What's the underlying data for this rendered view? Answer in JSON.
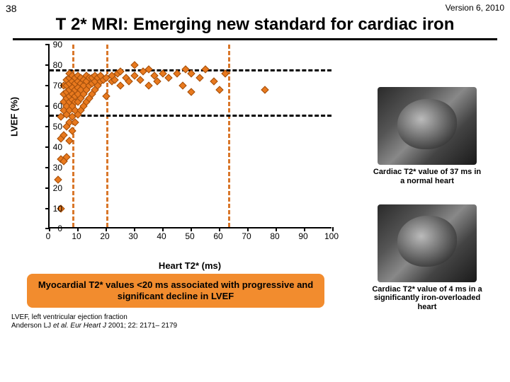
{
  "header": {
    "page_number": "38",
    "version": "Version 6, 2010"
  },
  "title": "T 2* MRI: Emerging new standard for cardiac iron",
  "chart": {
    "type": "scatter",
    "xlabel": "Heart T2* (ms)",
    "ylabel": "LVEF (%)",
    "xlim": [
      0,
      100
    ],
    "ylim": [
      0,
      90
    ],
    "xtick_step": 10,
    "ytick_step": 10,
    "marker": {
      "shape": "diamond",
      "size": 8,
      "fill": "#e8791e",
      "stroke": "#a04e0c"
    },
    "vlines": [
      {
        "x": 8,
        "color": "#d9772a"
      },
      {
        "x": 20,
        "color": "#d9772a"
      },
      {
        "x": 63,
        "color": "#d9772a"
      }
    ],
    "hlines": [
      {
        "y": 56,
        "color": "#000000"
      },
      {
        "y": 78,
        "color": "#000000"
      }
    ],
    "tick_color": "#000000",
    "points": [
      [
        3,
        24
      ],
      [
        4,
        10
      ],
      [
        4,
        34
      ],
      [
        4,
        44
      ],
      [
        4,
        55
      ],
      [
        5,
        33
      ],
      [
        5,
        46
      ],
      [
        5,
        58
      ],
      [
        5,
        62
      ],
      [
        5,
        66
      ],
      [
        5,
        70
      ],
      [
        6,
        35
      ],
      [
        6,
        50
      ],
      [
        6,
        56
      ],
      [
        6,
        60
      ],
      [
        6,
        64
      ],
      [
        6,
        67
      ],
      [
        6,
        70
      ],
      [
        6,
        73
      ],
      [
        7,
        43
      ],
      [
        7,
        52
      ],
      [
        7,
        58
      ],
      [
        7,
        62
      ],
      [
        7,
        65
      ],
      [
        7,
        68
      ],
      [
        7,
        71
      ],
      [
        7,
        74
      ],
      [
        7,
        76
      ],
      [
        8,
        48
      ],
      [
        8,
        55
      ],
      [
        8,
        60
      ],
      [
        8,
        63
      ],
      [
        8,
        66
      ],
      [
        8,
        69
      ],
      [
        8,
        72
      ],
      [
        8,
        75
      ],
      [
        9,
        52
      ],
      [
        9,
        58
      ],
      [
        9,
        62
      ],
      [
        9,
        65
      ],
      [
        9,
        68
      ],
      [
        9,
        71
      ],
      [
        9,
        74
      ],
      [
        10,
        56
      ],
      [
        10,
        62
      ],
      [
        10,
        66
      ],
      [
        10,
        69
      ],
      [
        10,
        72
      ],
      [
        10,
        75
      ],
      [
        11,
        58
      ],
      [
        11,
        64
      ],
      [
        11,
        68
      ],
      [
        11,
        71
      ],
      [
        11,
        74
      ],
      [
        12,
        60
      ],
      [
        12,
        66
      ],
      [
        12,
        70
      ],
      [
        12,
        73
      ],
      [
        13,
        62
      ],
      [
        13,
        68
      ],
      [
        13,
        72
      ],
      [
        13,
        75
      ],
      [
        14,
        64
      ],
      [
        14,
        70
      ],
      [
        14,
        74
      ],
      [
        15,
        66
      ],
      [
        15,
        71
      ],
      [
        15,
        74
      ],
      [
        16,
        68
      ],
      [
        16,
        72
      ],
      [
        16,
        75
      ],
      [
        17,
        70
      ],
      [
        17,
        74
      ],
      [
        18,
        72
      ],
      [
        18,
        75
      ],
      [
        19,
        73
      ],
      [
        20,
        65
      ],
      [
        20,
        74
      ],
      [
        22,
        72
      ],
      [
        22,
        75
      ],
      [
        23,
        73
      ],
      [
        24,
        76
      ],
      [
        25,
        70
      ],
      [
        25,
        77
      ],
      [
        27,
        74
      ],
      [
        28,
        72
      ],
      [
        30,
        75
      ],
      [
        30,
        80
      ],
      [
        32,
        73
      ],
      [
        33,
        77
      ],
      [
        35,
        70
      ],
      [
        35,
        78
      ],
      [
        37,
        75
      ],
      [
        38,
        72
      ],
      [
        40,
        76
      ],
      [
        42,
        74
      ],
      [
        45,
        76
      ],
      [
        47,
        70
      ],
      [
        48,
        78
      ],
      [
        50,
        67
      ],
      [
        50,
        76
      ],
      [
        53,
        74
      ],
      [
        55,
        78
      ],
      [
        58,
        72
      ],
      [
        60,
        68
      ],
      [
        62,
        76
      ],
      [
        76,
        68
      ]
    ]
  },
  "images": {
    "normal": {
      "caption": "Cardiac T2* value of 37 ms in a normal heart"
    },
    "overload": {
      "caption": "Cardiac T2* value of 4 ms in a significantly iron-overloaded heart"
    }
  },
  "callout": "Myocardial T2* values <20 ms associated with progressive and significant decline in LVEF",
  "footnote": {
    "line1": "LVEF, left ventricular ejection fraction",
    "line2_pre": "Anderson LJ ",
    "line2_ital": "et al. Eur Heart J ",
    "line2_post": "2001; 22: 2171– 2179"
  }
}
